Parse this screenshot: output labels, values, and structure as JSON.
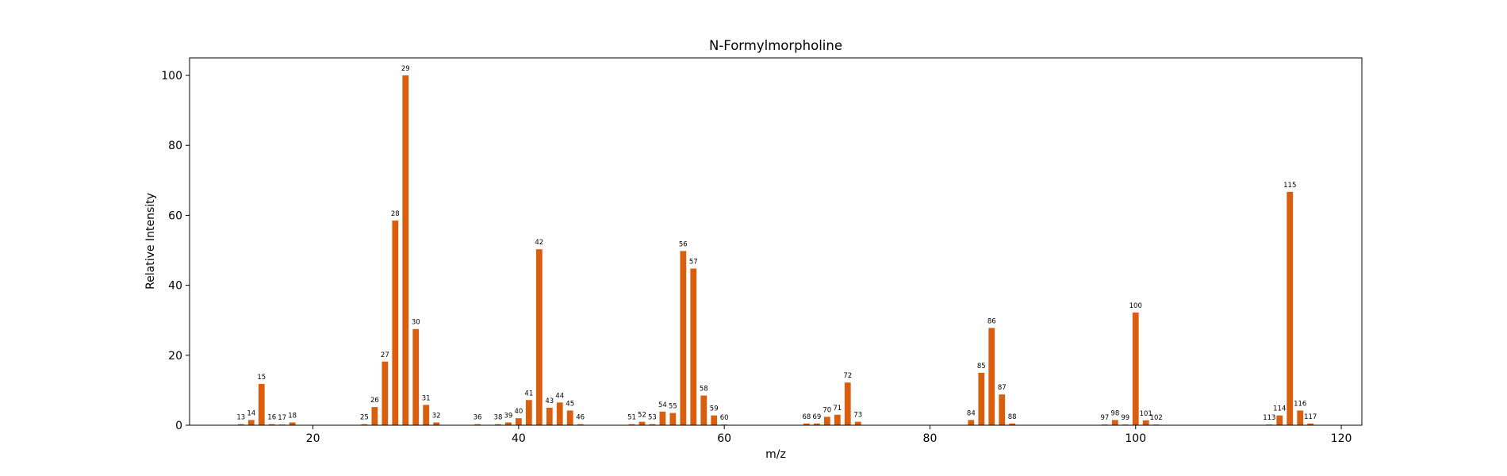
{
  "chart_data": {
    "type": "bar",
    "title": "N-Formylmorpholine",
    "xlabel": "m/z",
    "ylabel": "Relative Intensity",
    "xlim": [
      8,
      122
    ],
    "ylim": [
      0,
      105
    ],
    "xticks": [
      20,
      40,
      60,
      80,
      100,
      120
    ],
    "yticks": [
      0,
      20,
      40,
      60,
      80,
      100
    ],
    "grid": false,
    "legend": "none",
    "bar_color": "#d95f0e",
    "x": [
      13,
      14,
      15,
      16,
      17,
      18,
      25,
      26,
      27,
      28,
      29,
      30,
      31,
      32,
      36,
      38,
      39,
      40,
      41,
      42,
      43,
      44,
      45,
      46,
      51,
      52,
      53,
      54,
      55,
      56,
      57,
      58,
      59,
      60,
      68,
      69,
      70,
      71,
      72,
      73,
      84,
      85,
      86,
      87,
      88,
      97,
      98,
      99,
      100,
      101,
      102,
      113,
      114,
      115,
      116,
      117
    ],
    "values": [
      0.3,
      1.5,
      11.8,
      0.3,
      0.2,
      0.8,
      0.3,
      5.2,
      18.2,
      58.5,
      100.0,
      27.5,
      5.8,
      0.8,
      0.3,
      0.3,
      0.8,
      2.0,
      7.2,
      50.3,
      5.0,
      6.5,
      4.2,
      0.3,
      0.3,
      1.0,
      0.3,
      3.9,
      3.5,
      49.8,
      44.8,
      8.5,
      2.8,
      0.2,
      0.5,
      0.5,
      2.4,
      3.0,
      12.2,
      1.0,
      1.5,
      15.0,
      27.8,
      8.8,
      0.5,
      0.2,
      1.5,
      0.2,
      32.2,
      1.4,
      0.2,
      0.2,
      2.8,
      66.7,
      4.2,
      0.5
    ]
  }
}
